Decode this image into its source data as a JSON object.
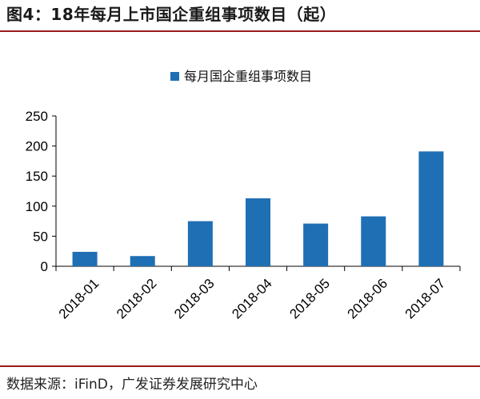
{
  "figure": {
    "title": "图4：18年每月上市国企重组事项数目（起）",
    "source": "数据来源：iFinD，广发证券发展研究中心"
  },
  "colors": {
    "bar": "#1f6fb4",
    "rule": "#9a1b1b",
    "axis": "#000000"
  },
  "chart_data": {
    "type": "bar",
    "title": "",
    "xlabel": "",
    "ylabel": "",
    "categories": [
      "2018-01",
      "2018-02",
      "2018-03",
      "2018-04",
      "2018-05",
      "2018-06",
      "2018-07"
    ],
    "series": [
      {
        "name": "每月国企重组事项数目",
        "values": [
          24,
          17,
          75,
          113,
          71,
          83,
          191
        ]
      }
    ],
    "ylim": [
      0,
      250
    ],
    "yticks": [
      0,
      50,
      100,
      150,
      200,
      250
    ],
    "legend": "top-center",
    "grid": false
  }
}
